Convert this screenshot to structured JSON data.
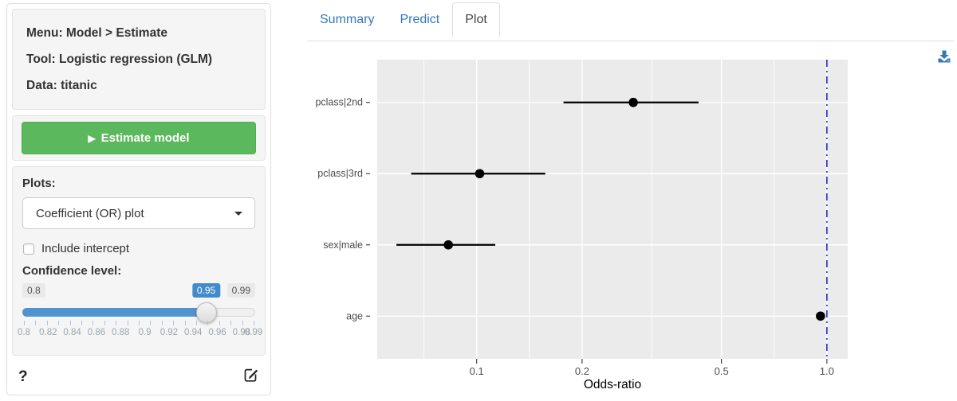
{
  "sidebar": {
    "info": {
      "menu": "Menu: Model > Estimate",
      "tool": "Tool: Logistic regression (GLM)",
      "data": "Data: titanic"
    },
    "estimate_button": {
      "label": "Estimate model",
      "icon": "play-icon",
      "color": "#5cb85c"
    },
    "plots": {
      "label": "Plots:",
      "selected": "Coefficient (OR) plot"
    },
    "include_intercept": {
      "label": "Include intercept",
      "checked": false
    },
    "confidence": {
      "label": "Confidence level:",
      "min_label": "0.8",
      "value_label": "0.95",
      "max_label": "0.99",
      "min": 0.8,
      "max": 0.99,
      "value": 0.95,
      "tick_labels": [
        "0.8",
        "0.82",
        "0.84",
        "0.86",
        "0.88",
        "0.9",
        "0.92",
        "0.94",
        "0.96",
        "0.98",
        "0.99"
      ],
      "accent_color": "#428bca"
    },
    "help_label": "?"
  },
  "tabs": [
    {
      "label": "Summary",
      "active": false
    },
    {
      "label": "Predict",
      "active": false
    },
    {
      "label": "Plot",
      "active": true
    }
  ],
  "toolbar": {
    "download_icon": "download-icon",
    "link_color": "#337ab7"
  },
  "chart_data": {
    "type": "scatter",
    "subtype": "coefficient-dot-whisker",
    "title": "",
    "xlabel": "Odds-ratio",
    "ylabel": "",
    "x_scale": "log10",
    "xlim": [
      0.052,
      1.147
    ],
    "x_ticks": [
      0.1,
      0.2,
      0.5,
      1.0
    ],
    "x_tick_labels": [
      "0.1",
      "0.2",
      "0.5",
      "1.0"
    ],
    "x_minor_ticks": [
      0.0707,
      0.1414,
      0.3162,
      0.7071
    ],
    "grid": true,
    "panel_color": "#EBEBEB",
    "gridline_color": "#FFFFFF",
    "point_color": "#000000",
    "reference_line": {
      "x": 1.0,
      "color": "#3333E0",
      "style": "dash-dot"
    },
    "series": [
      {
        "label": "pclass|2nd",
        "or": 0.28,
        "ci_low": 0.177,
        "ci_high": 0.43
      },
      {
        "label": "pclass|3rd",
        "or": 0.102,
        "ci_low": 0.065,
        "ci_high": 0.157
      },
      {
        "label": "sex|male",
        "or": 0.083,
        "ci_low": 0.059,
        "ci_high": 0.113
      },
      {
        "label": "age",
        "or": 0.959,
        "ci_low": 0.944,
        "ci_high": 0.974
      }
    ]
  }
}
